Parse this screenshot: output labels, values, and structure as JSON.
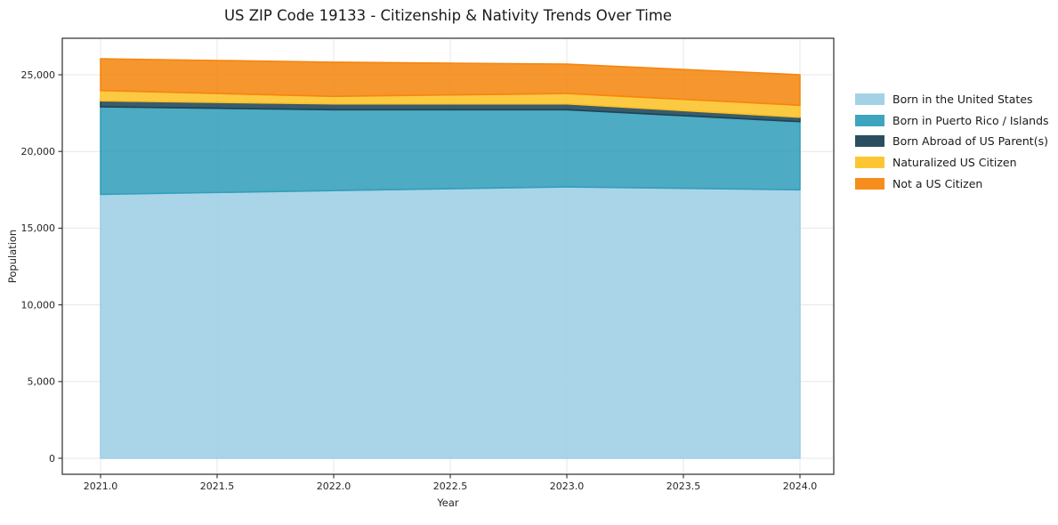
{
  "figure": {
    "background": "#ffffff",
    "text_color": "#1a1a1a",
    "tick_color": "#262626",
    "spine_color": "#2b2b2b",
    "grid_color": "#e7e7e7"
  },
  "chart_data": {
    "type": "area",
    "stacked": true,
    "title": "US ZIP Code 19133 - Citizenship & Nativity Trends Over Time",
    "xlabel": "Year",
    "ylabel": "Population",
    "x": [
      2021,
      2022,
      2023,
      2024
    ],
    "xlim": [
      2020.84,
      2024.15
    ],
    "ylim": [
      -1050,
      27400
    ],
    "grid": true,
    "legend_position": "right-outside",
    "xticks": [
      {
        "v": 2021.0,
        "label": "2021.0"
      },
      {
        "v": 2021.5,
        "label": "2021.5"
      },
      {
        "v": 2022.0,
        "label": "2022.0"
      },
      {
        "v": 2022.5,
        "label": "2022.5"
      },
      {
        "v": 2023.0,
        "label": "2023.0"
      },
      {
        "v": 2023.5,
        "label": "2023.5"
      },
      {
        "v": 2024.0,
        "label": "2024.0"
      }
    ],
    "yticks": [
      {
        "v": 0,
        "label": "0"
      },
      {
        "v": 5000,
        "label": "5,000"
      },
      {
        "v": 10000,
        "label": "10,000"
      },
      {
        "v": 15000,
        "label": "15,000"
      },
      {
        "v": 20000,
        "label": "20,000"
      },
      {
        "v": 25000,
        "label": "25,000"
      }
    ],
    "series": [
      {
        "name": "Born in the United States",
        "color": "#9dcfe6",
        "values": [
          17200,
          17450,
          17690,
          17500
        ]
      },
      {
        "name": "Born in Puerto Rico / Islands",
        "color": "#339fba",
        "values": [
          5710,
          5270,
          5030,
          4440
        ]
      },
      {
        "name": "Born Abroad of US Parent(s)",
        "color": "#1d4355",
        "values": [
          390,
          380,
          380,
          290
        ]
      },
      {
        "name": "Naturalized US Citizen",
        "color": "#fcc226",
        "values": [
          670,
          490,
          680,
          780
        ]
      },
      {
        "name": "Not a US Citizen",
        "color": "#f5860f",
        "values": [
          2070,
          2230,
          1910,
          1990
        ]
      }
    ],
    "fill_alpha": 0.87
  }
}
